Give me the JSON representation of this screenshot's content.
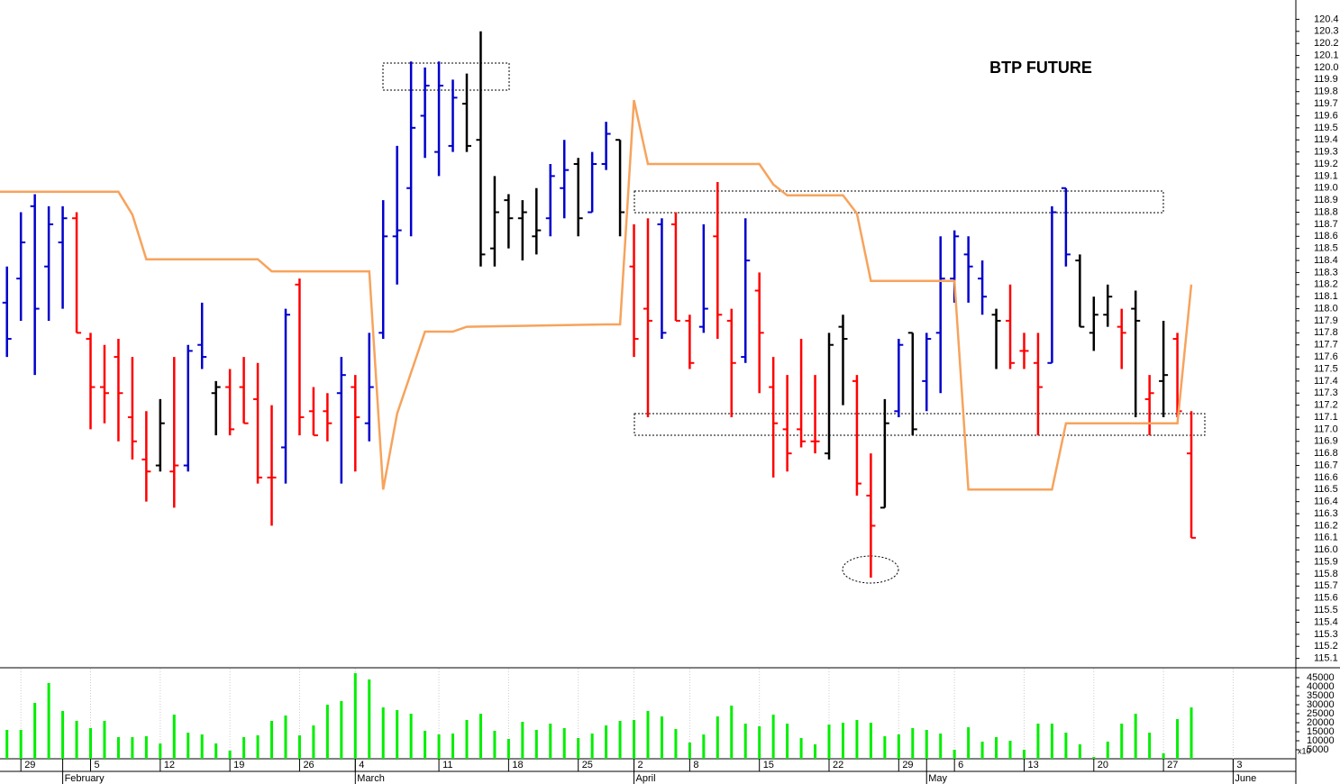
{
  "chart_data": {
    "type": "ohlc",
    "title": "BTP FUTURE",
    "open": [
      118.05,
      118.25,
      118.85,
      118.35,
      118.55,
      118.75,
      117.75,
      117.35,
      117.6,
      117.1,
      116.75,
      116.7,
      116.65,
      116.7,
      117.7,
      117.3,
      117.35,
      117.35,
      117.25,
      116.6,
      116.85,
      118.2,
      117.15,
      117.15,
      117.3,
      117.35,
      117.05,
      117.8,
      118.6,
      119.0,
      119.6,
      119.3,
      119.35,
      119.7,
      119.4,
      118.5,
      118.9,
      118.75,
      118.6,
      118.75,
      119.0,
      119.2,
      118.8,
      119.2,
      119.4,
      118.35,
      118.0,
      118.7,
      118.7,
      117.9,
      117.85,
      118.6,
      117.9,
      117.6,
      118.15,
      117.35,
      117.0,
      117.0,
      116.9,
      116.8,
      117.85,
      117.4,
      116.45,
      116.35,
      117.15,
      117.8,
      117.4,
      117.8,
      118.25,
      118.45,
      118.25,
      117.95,
      117.9,
      117.65,
      117.55,
      117.55,
      119.0,
      118.4,
      117.8,
      117.95,
      117.85,
      118.0,
      117.25,
      117.4,
      117.75,
      116.8
    ],
    "high": [
      118.35,
      118.8,
      118.95,
      118.85,
      118.85,
      118.8,
      117.8,
      117.7,
      117.75,
      117.6,
      117.15,
      117.25,
      117.6,
      117.7,
      118.05,
      117.4,
      117.5,
      117.6,
      117.55,
      117.2,
      118.0,
      118.25,
      117.35,
      117.3,
      117.6,
      117.45,
      117.8,
      118.9,
      119.35,
      120.05,
      120.0,
      120.05,
      119.9,
      119.95,
      120.3,
      119.1,
      118.95,
      118.9,
      119.0,
      119.2,
      119.4,
      119.25,
      119.3,
      119.55,
      119.4,
      118.7,
      118.75,
      118.75,
      118.8,
      117.95,
      118.7,
      119.05,
      118.0,
      118.75,
      118.3,
      117.6,
      117.45,
      117.75,
      117.45,
      117.8,
      117.95,
      117.45,
      116.8,
      117.25,
      117.75,
      117.8,
      117.8,
      118.6,
      118.65,
      118.6,
      118.4,
      118.0,
      118.2,
      117.8,
      117.8,
      118.85,
      119.0,
      118.45,
      118.1,
      118.2,
      118.0,
      118.15,
      117.45,
      117.9,
      117.8,
      117.15
    ],
    "low": [
      117.6,
      117.9,
      117.45,
      117.9,
      118.0,
      117.8,
      117.0,
      117.05,
      116.9,
      116.75,
      116.4,
      116.65,
      116.35,
      116.65,
      117.5,
      116.95,
      116.95,
      117.05,
      116.55,
      116.2,
      116.55,
      116.95,
      116.95,
      116.9,
      116.55,
      116.65,
      116.9,
      117.75,
      118.2,
      118.6,
      119.25,
      119.1,
      119.3,
      119.3,
      118.35,
      118.35,
      118.5,
      118.4,
      118.45,
      118.6,
      118.75,
      118.6,
      118.8,
      119.15,
      118.6,
      117.6,
      117.1,
      117.75,
      117.9,
      117.5,
      117.8,
      117.75,
      117.1,
      117.55,
      117.3,
      116.6,
      116.65,
      116.85,
      116.8,
      116.75,
      117.2,
      116.45,
      115.77,
      116.35,
      117.1,
      116.95,
      117.15,
      117.3,
      118.05,
      118.05,
      117.95,
      117.5,
      117.5,
      117.5,
      116.95,
      117.55,
      118.35,
      117.85,
      117.65,
      117.85,
      117.5,
      117.1,
      116.95,
      117.1,
      117.1,
      116.1
    ],
    "close": [
      117.75,
      118.55,
      118.0,
      118.7,
      118.75,
      117.8,
      117.35,
      117.3,
      117.3,
      116.9,
      116.65,
      117.05,
      116.7,
      117.65,
      117.6,
      117.35,
      117.0,
      117.05,
      116.6,
      116.6,
      117.95,
      117.1,
      116.95,
      117.05,
      117.45,
      117.1,
      117.35,
      118.6,
      118.65,
      119.5,
      119.85,
      119.85,
      119.75,
      119.35,
      118.45,
      118.8,
      118.75,
      118.8,
      118.65,
      119.1,
      119.15,
      118.75,
      119.2,
      119.45,
      118.8,
      117.75,
      117.9,
      117.8,
      117.9,
      117.55,
      118.0,
      117.95,
      117.55,
      118.4,
      117.8,
      117.05,
      116.8,
      116.9,
      116.9,
      117.7,
      117.75,
      116.55,
      116.2,
      117.05,
      117.7,
      117.0,
      117.75,
      118.25,
      118.6,
      118.35,
      118.1,
      117.9,
      117.55,
      117.65,
      117.35,
      118.8,
      118.45,
      117.85,
      117.95,
      118.1,
      117.8,
      117.9,
      117.3,
      117.45,
      117.15,
      116.1
    ],
    "colors": [
      "#0000cc",
      "#0000cc",
      "#0000cc",
      "#0000cc",
      "#0000cc",
      "#ff0000",
      "#ff0000",
      "#ff0000",
      "#ff0000",
      "#ff0000",
      "#ff0000",
      "#000000",
      "#ff0000",
      "#0000cc",
      "#0000cc",
      "#000000",
      "#ff0000",
      "#ff0000",
      "#ff0000",
      "#ff0000",
      "#0000cc",
      "#ff0000",
      "#ff0000",
      "#ff0000",
      "#0000cc",
      "#ff0000",
      "#0000cc",
      "#0000cc",
      "#0000cc",
      "#0000cc",
      "#0000cc",
      "#0000cc",
      "#0000cc",
      "#000000",
      "#000000",
      "#000000",
      "#000000",
      "#000000",
      "#000000",
      "#0000cc",
      "#0000cc",
      "#000000",
      "#0000cc",
      "#0000cc",
      "#000000",
      "#ff0000",
      "#ff0000",
      "#0000cc",
      "#ff0000",
      "#ff0000",
      "#0000cc",
      "#ff0000",
      "#ff0000",
      "#0000cc",
      "#ff0000",
      "#ff0000",
      "#ff0000",
      "#ff0000",
      "#ff0000",
      "#000000",
      "#000000",
      "#ff0000",
      "#ff0000",
      "#000000",
      "#0000cc",
      "#000000",
      "#0000cc",
      "#0000cc",
      "#0000cc",
      "#0000cc",
      "#0000cc",
      "#000000",
      "#ff0000",
      "#ff0000",
      "#ff0000",
      "#0000cc",
      "#0000cc",
      "#000000",
      "#000000",
      "#000000",
      "#ff0000",
      "#000000",
      "#ff0000",
      "#000000",
      "#ff0000",
      "#ff0000"
    ],
    "overlay": {
      "color": "#f7a35c",
      "x": [
        -0.5,
        8,
        9,
        10,
        18,
        19,
        26,
        27,
        28,
        30,
        32,
        33,
        43,
        44,
        45,
        46,
        54,
        55,
        56,
        60,
        61,
        62,
        68,
        69,
        75,
        76,
        84,
        85
      ],
      "values": [
        118.97,
        118.97,
        118.78,
        118.41,
        118.41,
        118.31,
        118.31,
        116.5,
        117.13,
        117.81,
        117.81,
        117.85,
        117.87,
        117.87,
        119.73,
        119.2,
        119.2,
        119.03,
        118.94,
        118.94,
        118.79,
        118.23,
        118.23,
        116.5,
        116.5,
        117.05,
        117.05,
        118.2
      ]
    },
    "volume": [
      16000,
      16000,
      31000,
      42000,
      26500,
      21000,
      17000,
      21000,
      12000,
      12000,
      12500,
      8500,
      24500,
      14500,
      13500,
      8500,
      4500,
      12000,
      13000,
      21000,
      24000,
      13000,
      18500,
      30000,
      32000,
      47500,
      44000,
      28500,
      27000,
      25000,
      15500,
      13500,
      14000,
      21500,
      25000,
      15500,
      11000,
      20500,
      16000,
      19500,
      17000,
      11500,
      14000,
      18500,
      21000,
      21500,
      26500,
      23500,
      16500,
      9000,
      13500,
      23500,
      29500,
      19500,
      18000,
      24500,
      19500,
      11500,
      8000,
      19000,
      20000,
      21500,
      20000,
      12500,
      13500,
      17000,
      16000,
      14000,
      5000,
      17500,
      9500,
      12000,
      10000,
      5000,
      19500,
      19500,
      14500,
      8000,
      1000,
      9500,
      19500,
      25000,
      14500,
      3000,
      22000,
      28500
    ],
    "volume_color": "#00ee00",
    "volume_unit_note": "x10",
    "xlim": [
      -0.5,
      92.5
    ],
    "ylim": [
      115.03,
      120.56
    ],
    "yticks": [
      115.1,
      115.2,
      115.3,
      115.4,
      115.5,
      115.6,
      115.7,
      115.8,
      115.9,
      {
        "value": 116,
        "label": "116.0"
      },
      116.1,
      116.2,
      116.3,
      116.4,
      116.5,
      116.6,
      116.7,
      116.8,
      116.9,
      {
        "value": 117,
        "label": "117.0"
      },
      117.1,
      117.2,
      117.3,
      117.4,
      117.5,
      117.6,
      117.7,
      117.8,
      117.9,
      {
        "value": 118,
        "label": "118.0"
      },
      118.1,
      118.2,
      118.3,
      118.4,
      118.5,
      118.6,
      118.7,
      118.8,
      118.9,
      {
        "value": 119,
        "label": "119.0"
      },
      119.1,
      119.2,
      119.3,
      119.4,
      119.5,
      119.6,
      119.7,
      119.8,
      119.9,
      {
        "value": 120,
        "label": "120.0"
      },
      120.1,
      120.2,
      120.3,
      120.4
    ],
    "volume_ylim": [
      0,
      50000
    ],
    "volume_yticks": [
      5000,
      10000,
      15000,
      20000,
      25000,
      30000,
      35000,
      40000,
      45000
    ],
    "xticks": [
      {
        "value": 1,
        "label": "29"
      },
      {
        "value": 6,
        "label": "5"
      },
      {
        "value": 11,
        "label": "12"
      },
      {
        "value": 16,
        "label": "19"
      },
      {
        "value": 21,
        "label": "26"
      },
      {
        "value": 25,
        "label": "4"
      },
      {
        "value": 31,
        "label": "11"
      },
      {
        "value": 36,
        "label": "18"
      },
      {
        "value": 41,
        "label": "25"
      },
      {
        "value": 45,
        "label": "2"
      },
      {
        "value": 49,
        "label": "8"
      },
      {
        "value": 54,
        "label": "15"
      },
      {
        "value": 59,
        "label": "22"
      },
      {
        "value": 64,
        "label": "29"
      },
      {
        "value": 68,
        "label": "6"
      },
      {
        "value": 73,
        "label": "13"
      },
      {
        "value": 78,
        "label": "20"
      },
      {
        "value": 83,
        "label": "27"
      },
      {
        "value": 88,
        "label": "3"
      }
    ],
    "months": [
      {
        "value": 4,
        "label": "February"
      },
      {
        "value": 25,
        "label": "March"
      },
      {
        "value": 45,
        "label": "April"
      },
      {
        "value": 66,
        "label": "May"
      },
      {
        "value": 88,
        "label": "June"
      }
    ],
    "volume_grid": true
  }
}
